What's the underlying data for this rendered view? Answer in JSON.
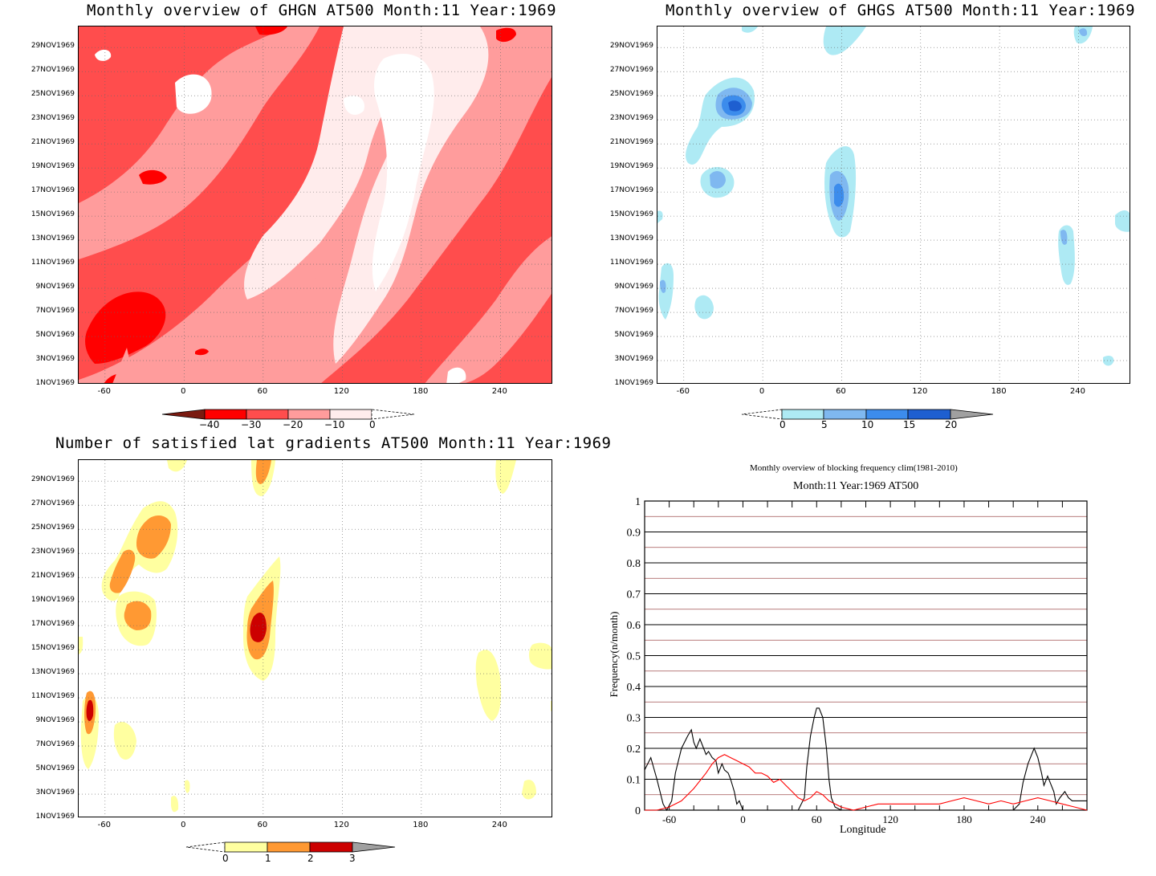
{
  "colors": {
    "red_scale": [
      "#7a1a10",
      "#ff0000",
      "#ff4d4d",
      "#ff9c9c",
      "#ffecec",
      "#ffffff"
    ],
    "blue_scale": [
      "#ffffff",
      "#aeeaf4",
      "#7fb8f0",
      "#3c8cec",
      "#1e5fd0",
      "#a0a0a0"
    ],
    "yellow_scale": [
      "#ffffff",
      "#ffffa0",
      "#ff9933",
      "#cc0000",
      "#a0a0a0"
    ]
  },
  "dates": [
    "1NOV1969",
    "3NOV1969",
    "5NOV1969",
    "7NOV1969",
    "9NOV1969",
    "11NOV1969",
    "13NOV1969",
    "15NOV1969",
    "17NOV1969",
    "19NOV1969",
    "21NOV1969",
    "23NOV1969",
    "25NOV1969",
    "27NOV1969",
    "29NOV1969"
  ],
  "lon_ticks": [
    "-60",
    "0",
    "60",
    "120",
    "180",
    "240"
  ],
  "panels": {
    "ghgn": {
      "title": "Monthly overview of GHGN AT500 Month:11 Year:1969",
      "colorbar_labels": [
        "−40",
        "−30",
        "−20",
        "−10",
        "0"
      ]
    },
    "ghgs": {
      "title": "Monthly overview of GHGS AT500 Month:11 Year:1969",
      "colorbar_labels": [
        "0",
        "5",
        "10",
        "15",
        "20"
      ]
    },
    "gradients": {
      "title": "Number of satisfied lat gradients AT500 Month:11 Year:1969",
      "colorbar_labels": [
        "0",
        "1",
        "2",
        "3"
      ]
    },
    "frequency": {
      "title1": "Monthly overview of blocking frequency clim(1981-2010)",
      "title2": "Month:11 Year:1969  AT500",
      "xlabel": "Longitude",
      "ylabel": "Frequency(n/month)",
      "yticks": [
        "0",
        "0.1",
        "0.2",
        "0.3",
        "0.4",
        "0.5",
        "0.6",
        "0.7",
        "0.8",
        "0.9",
        "1"
      ],
      "xticks": [
        "-60",
        "0",
        "60",
        "120",
        "180",
        "240"
      ]
    }
  },
  "chart_data": [
    {
      "type": "heatmap",
      "title": "Monthly overview of GHGN AT500 Month:11 Year:1969",
      "x_range": [
        -80,
        280
      ],
      "y_range": [
        "1NOV1969",
        "30NOV1969"
      ],
      "levels": [
        -40,
        -30,
        -20,
        -10,
        0
      ]
    },
    {
      "type": "heatmap",
      "title": "Monthly overview of GHGS AT500 Month:11 Year:1969",
      "x_range": [
        -80,
        280
      ],
      "y_range": [
        "1NOV1969",
        "30NOV1969"
      ],
      "levels": [
        0,
        5,
        10,
        15,
        20
      ]
    },
    {
      "type": "heatmap",
      "title": "Number of satisfied lat gradients AT500 Month:11 Year:1969",
      "x_range": [
        -80,
        280
      ],
      "y_range": [
        "1NOV1969",
        "30NOV1969"
      ],
      "levels": [
        0,
        1,
        2,
        3
      ]
    },
    {
      "type": "line",
      "title": "Monthly overview of blocking frequency clim(1981-2010)",
      "subtitle": "Month:11 Year:1969  AT500",
      "xlabel": "Longitude",
      "ylabel": "Frequency(n/month)",
      "xlim": [
        -80,
        280
      ],
      "ylim": [
        0,
        1
      ],
      "series": [
        {
          "color": "#000000",
          "x": [
            -80,
            -75,
            -70,
            -65,
            -62,
            -58,
            -55,
            -50,
            -45,
            -42,
            -40,
            -38,
            -35,
            -32,
            -30,
            -28,
            -25,
            -22,
            -20,
            -17,
            -15,
            -12,
            -10,
            -7,
            -5,
            -3,
            0,
            5,
            10,
            20,
            30,
            40,
            45,
            50,
            52,
            55,
            58,
            60,
            62,
            65,
            68,
            70,
            72,
            75,
            80,
            90,
            120,
            180,
            220,
            225,
            228,
            232,
            235,
            237,
            240,
            243,
            245,
            248,
            250,
            253,
            255,
            258,
            262,
            265,
            268,
            272,
            275,
            280
          ],
          "values": [
            0.13,
            0.17,
            0.1,
            0.02,
            0.0,
            0.03,
            0.12,
            0.2,
            0.24,
            0.26,
            0.22,
            0.2,
            0.23,
            0.2,
            0.18,
            0.19,
            0.17,
            0.16,
            0.12,
            0.15,
            0.13,
            0.12,
            0.1,
            0.06,
            0.02,
            0.03,
            0.0,
            0.0,
            0.0,
            0.0,
            0.0,
            0.0,
            0.0,
            0.04,
            0.14,
            0.24,
            0.3,
            0.33,
            0.33,
            0.3,
            0.2,
            0.1,
            0.04,
            0.01,
            0.0,
            0.0,
            0.0,
            0.0,
            0.0,
            0.02,
            0.09,
            0.15,
            0.18,
            0.2,
            0.17,
            0.12,
            0.08,
            0.11,
            0.09,
            0.06,
            0.02,
            0.04,
            0.06,
            0.04,
            0.03,
            0.03,
            0.03,
            0.03
          ]
        },
        {
          "color": "#ff0000",
          "x": [
            -80,
            -70,
            -60,
            -50,
            -40,
            -30,
            -25,
            -20,
            -15,
            -10,
            -5,
            0,
            5,
            10,
            15,
            20,
            25,
            30,
            35,
            40,
            45,
            50,
            55,
            60,
            65,
            70,
            80,
            90,
            100,
            110,
            120,
            140,
            160,
            170,
            180,
            190,
            200,
            210,
            220,
            230,
            240,
            250,
            260,
            270,
            280
          ],
          "values": [
            0.0,
            0.0,
            0.01,
            0.03,
            0.07,
            0.12,
            0.15,
            0.17,
            0.18,
            0.17,
            0.16,
            0.15,
            0.14,
            0.12,
            0.12,
            0.11,
            0.09,
            0.1,
            0.08,
            0.06,
            0.04,
            0.03,
            0.04,
            0.06,
            0.05,
            0.03,
            0.01,
            0.0,
            0.01,
            0.02,
            0.02,
            0.02,
            0.02,
            0.03,
            0.04,
            0.03,
            0.02,
            0.03,
            0.02,
            0.03,
            0.04,
            0.03,
            0.02,
            0.01,
            0.0
          ]
        }
      ]
    }
  ]
}
